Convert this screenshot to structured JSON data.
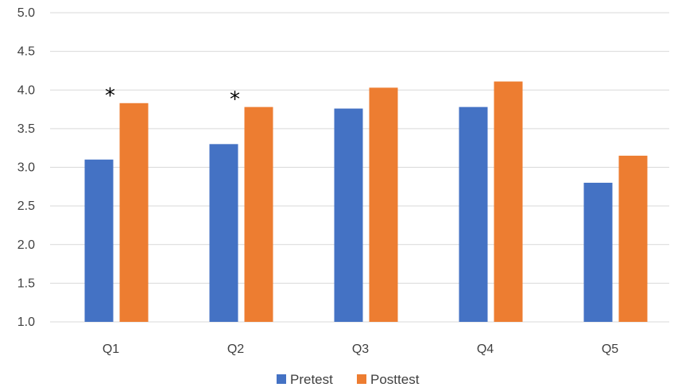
{
  "chart_data": {
    "type": "bar",
    "categories": [
      "Q1",
      "Q2",
      "Q3",
      "Q4",
      "Q5"
    ],
    "series": [
      {
        "name": "Pretest",
        "values": [
          3.1,
          3.3,
          3.76,
          3.78,
          2.8
        ],
        "color": "#4472c4"
      },
      {
        "name": "Posttest",
        "values": [
          3.83,
          3.78,
          4.03,
          4.11,
          3.15
        ],
        "color": "#ed7d31"
      }
    ],
    "annotations": [
      {
        "category": "Q1",
        "text": "*"
      },
      {
        "category": "Q2",
        "text": "*"
      }
    ],
    "yticks": [
      "1.0",
      "1.5",
      "2.0",
      "2.5",
      "3.0",
      "3.5",
      "4.0",
      "4.5",
      "5.0"
    ],
    "ylim": [
      1.0,
      5.0
    ],
    "grid": true,
    "legend_position": "bottom-center",
    "title": "",
    "xlabel": "",
    "ylabel": ""
  }
}
